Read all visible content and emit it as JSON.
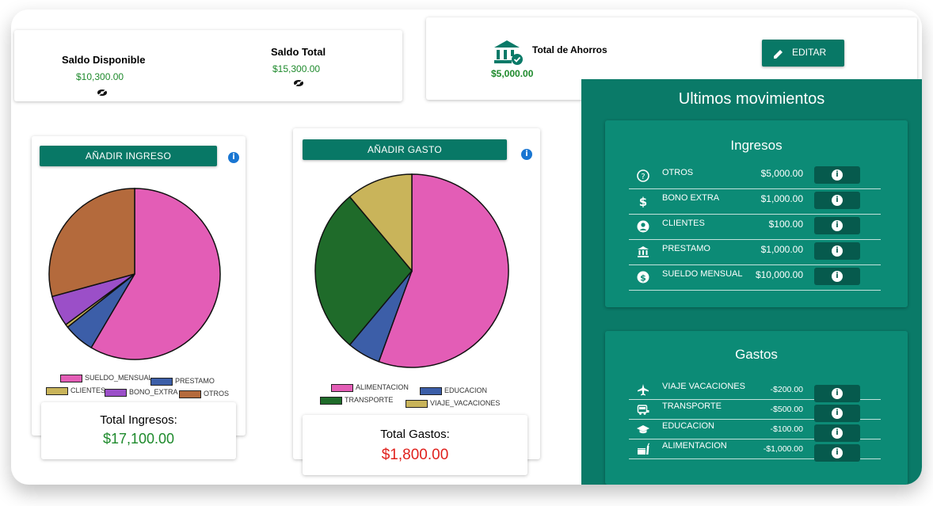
{
  "balances": {
    "disponible_label": "Saldo Disponible",
    "disponible_value": "$10,300.00",
    "total_label": "Saldo Total",
    "total_value": "$15,300.00"
  },
  "ahorros": {
    "label": "Total de Ahorros",
    "value": "$5,000.00",
    "edit_label": "EDITAR"
  },
  "ingresos_card": {
    "button": "AÑADIR INGRESO",
    "total_label": "Total Ingresos:",
    "total_value": "$17,100.00"
  },
  "gastos_card": {
    "button": "AÑADIR GASTO",
    "total_label": "Total Gastos:",
    "total_value": "$1,800.00"
  },
  "movimientos": {
    "title": "Ultimos movimientos",
    "ingresos_title": "Ingresos",
    "gastos_title": "Gastos",
    "ingresos": [
      {
        "name": "OTROS",
        "amount": "$5,000.00",
        "icon": "help-circle-icon"
      },
      {
        "name": "BONO EXTRA",
        "amount": "$1,000.00",
        "icon": "dollar-icon"
      },
      {
        "name": "CLIENTES",
        "amount": "$100.00",
        "icon": "user-circle-icon"
      },
      {
        "name": "PRESTAMO",
        "amount": "$1,000.00",
        "icon": "bank-icon"
      },
      {
        "name": "SUELDO MENSUAL",
        "amount": "$10,000.00",
        "icon": "money-circle-icon"
      }
    ],
    "gastos": [
      {
        "name": "VIAJE VACACIONES",
        "amount": "-$200.00",
        "icon": "airplane-icon"
      },
      {
        "name": "TRANSPORTE",
        "amount": "-$500.00",
        "icon": "bus-icon"
      },
      {
        "name": "EDUCACION",
        "amount": "-$100.00",
        "icon": "graduation-cap-icon"
      },
      {
        "name": "ALIMENTACION",
        "amount": "-$1,000.00",
        "icon": "food-icon"
      }
    ]
  },
  "chart_data": [
    {
      "type": "pie",
      "categories": [
        "SUELDO_MENSUAL",
        "PRESTAMO",
        "CLIENTES",
        "BONO_EXTRA",
        "OTROS"
      ],
      "values": [
        10000,
        1000,
        100,
        1000,
        5000
      ],
      "colors": [
        "#e35db6",
        "#3c5ea8",
        "#c9b45a",
        "#9b4fc8",
        "#b46a3c"
      ],
      "legend": "bottom"
    },
    {
      "type": "pie",
      "categories": [
        "ALIMENTACION",
        "EDUCACION",
        "TRANSPORTE",
        "VIAJE_VACACIONES"
      ],
      "values": [
        1000,
        100,
        500,
        200
      ],
      "colors": [
        "#e35db6",
        "#3c5ea8",
        "#1f6b2a",
        "#c9b45a"
      ],
      "legend": "bottom"
    }
  ]
}
